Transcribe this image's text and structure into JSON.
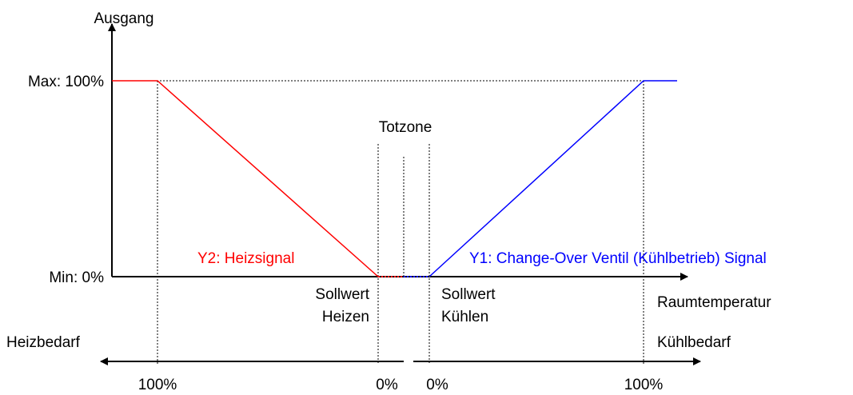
{
  "axes": {
    "y_label": "Ausgang",
    "x_label": "Raumtemperatur",
    "max_label": "Max: 100%",
    "min_label": "Min: 0%"
  },
  "signals": {
    "heating": "Y2: Heizsignal",
    "cooling": "Y1: Change-Over Ventil (Kühlbetrieb) Signal"
  },
  "annotations": {
    "deadband": "Totzone",
    "setpoint_heating": [
      "Sollwert",
      "Heizen"
    ],
    "setpoint_cooling": [
      "Sollwert",
      "Kühlen"
    ]
  },
  "demand": {
    "heating": "Heizbedarf",
    "cooling": "Kühlbedarf"
  },
  "scale_labels": [
    "100%",
    "0%",
    "0%",
    "100%"
  ]
}
